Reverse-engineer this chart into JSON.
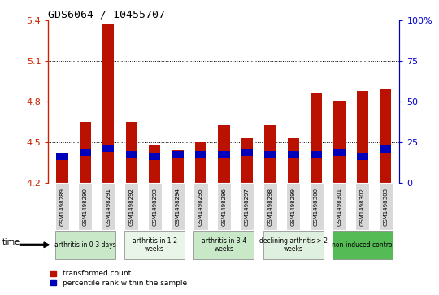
{
  "title": "GDS6064 / 10455707",
  "samples": [
    "GSM1498289",
    "GSM1498290",
    "GSM1498291",
    "GSM1498292",
    "GSM1498293",
    "GSM1498294",
    "GSM1498295",
    "GSM1498296",
    "GSM1498297",
    "GSM1498298",
    "GSM1498299",
    "GSM1498300",
    "GSM1498301",
    "GSM1498302",
    "GSM1498303"
  ],
  "red_values": [
    4.42,
    4.65,
    5.37,
    4.65,
    4.48,
    4.44,
    4.5,
    4.63,
    4.53,
    4.63,
    4.53,
    4.87,
    4.81,
    4.88,
    4.9
  ],
  "blue_bottom": [
    4.37,
    4.4,
    4.43,
    4.38,
    4.37,
    4.38,
    4.38,
    4.38,
    4.4,
    4.38,
    4.38,
    4.38,
    4.4,
    4.37,
    4.42
  ],
  "blue_height": [
    0.055,
    0.055,
    0.055,
    0.055,
    0.055,
    0.055,
    0.055,
    0.055,
    0.055,
    0.055,
    0.055,
    0.055,
    0.055,
    0.055,
    0.055
  ],
  "ymin": 4.2,
  "ymax": 5.4,
  "yticks": [
    4.2,
    4.5,
    4.8,
    5.1,
    5.4
  ],
  "ytick_labels": [
    "4.2",
    "4.5",
    "4.8",
    "5.1",
    "5.4"
  ],
  "right_yticks": [
    0,
    25,
    50,
    75,
    100
  ],
  "right_ytick_labels": [
    "0",
    "25",
    "50",
    "75",
    "100%"
  ],
  "bar_color": "#bb1100",
  "blue_color": "#0000bb",
  "groups": [
    {
      "label": "arthritis in 0-3 days",
      "start": 0,
      "end": 3,
      "color": "#c8e8c8"
    },
    {
      "label": "arthritis in 1-2\nweeks",
      "start": 3,
      "end": 6,
      "color": "#e8f5e8"
    },
    {
      "label": "arthritis in 3-4\nweeks",
      "start": 6,
      "end": 9,
      "color": "#c8e8c8"
    },
    {
      "label": "declining arthritis > 2\nweeks",
      "start": 9,
      "end": 12,
      "color": "#e0f0e0"
    },
    {
      "label": "non-induced control",
      "start": 12,
      "end": 15,
      "color": "#55bb55"
    }
  ],
  "time_label": "time",
  "legend_red": "transformed count",
  "legend_blue": "percentile rank within the sample",
  "left_axis_color": "#cc2200",
  "right_axis_color": "#0000cc",
  "sample_box_color": "#d8d8d8"
}
